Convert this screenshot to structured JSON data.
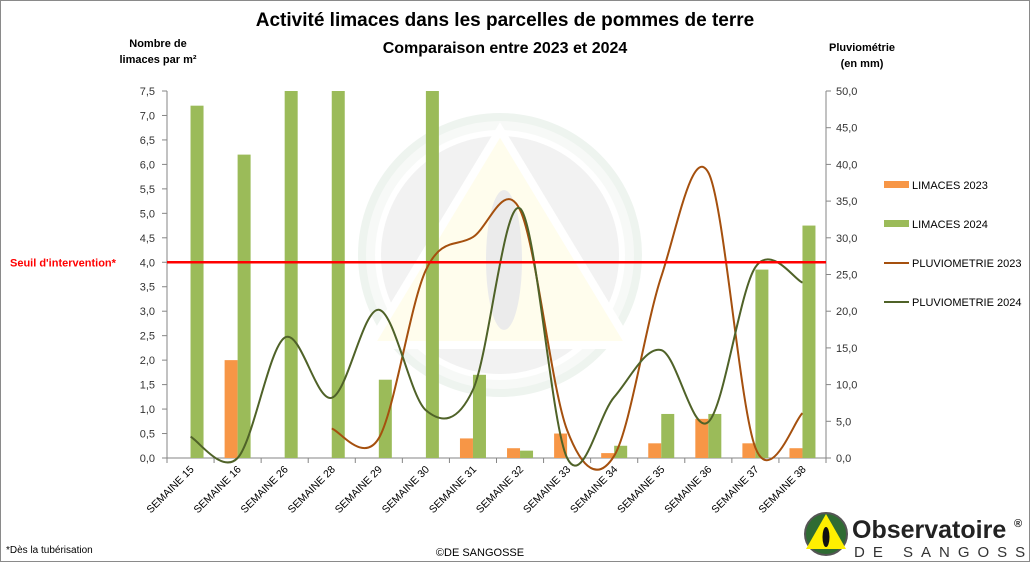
{
  "chart_data": {
    "type": "bar",
    "title": "Activité limaces dans les parcelles de pommes de terre",
    "subtitle": "Comparaison entre 2023 et 2024",
    "ylabel": [
      "Nombre de",
      "limaces par m²"
    ],
    "y2label": [
      "Pluviométrie",
      "(en mm)"
    ],
    "ylim": [
      0,
      7.5
    ],
    "y2lim": [
      0,
      50
    ],
    "yticks": [
      "0,0",
      "0,5",
      "1,0",
      "1,5",
      "2,0",
      "2,5",
      "3,0",
      "3,5",
      "4,0",
      "4,5",
      "5,0",
      "5,5",
      "6,0",
      "6,5",
      "7,0",
      "7,5"
    ],
    "y2ticks": [
      "0,0",
      "5,0",
      "10,0",
      "15,0",
      "20,0",
      "25,0",
      "30,0",
      "35,0",
      "40,0",
      "45,0",
      "50,0"
    ],
    "categories": [
      "SEMAINE 15",
      "SEMAINE 16",
      "SEMAINE 26",
      "SEMAINE 28",
      "SEMAINE 29",
      "SEMAINE 30",
      "SEMAINE 31",
      "SEMAINE 32",
      "SEMAINE 33",
      "SEMAINE 34",
      "SEMAINE 35",
      "SEMAINE 36",
      "SEMAINE 37",
      "SEMAINE 38"
    ],
    "series": [
      {
        "name": "LIMACES 2023",
        "kind": "bar",
        "axis": "left",
        "color": "#f79646",
        "values": [
          0,
          2.0,
          0,
          0,
          0,
          0,
          0.4,
          0.2,
          0.5,
          0.1,
          0.3,
          0.8,
          0.3,
          0.2
        ]
      },
      {
        "name": "LIMACES 2024",
        "kind": "bar",
        "axis": "left",
        "color": "#9bbb59",
        "values": [
          7.2,
          6.2,
          7.5,
          7.5,
          1.6,
          7.5,
          1.7,
          0.15,
          0,
          0.25,
          0.9,
          0.9,
          3.85,
          4.75
        ]
      },
      {
        "name": "PLUVIOMETRIE 2023",
        "kind": "line",
        "axis": "right",
        "color": "#a5500e",
        "values": [
          null,
          null,
          null,
          4.0,
          2.7,
          25.6,
          30.1,
          33.8,
          3.8,
          0.3,
          24.7,
          38.9,
          1.4,
          6.1
        ]
      },
      {
        "name": "PLUVIOMETRIE 2024",
        "kind": "line",
        "axis": "right",
        "color": "#4f6228",
        "values": [
          2.9,
          0,
          16.4,
          8.2,
          20.2,
          6.5,
          9.3,
          34.0,
          0,
          8.3,
          14.7,
          4.9,
          26.0,
          23.9
        ]
      }
    ],
    "threshold": {
      "value": 4.0,
      "label": "Seuil  d'intervention*",
      "color": "#ff0000"
    },
    "legend": "right",
    "grid": false
  },
  "footnote": "*Dès la tubérisation",
  "copyright": "©DE SANGOSSE",
  "logo": {
    "name": "Observatoire",
    "registered": "®",
    "sub": "DE SANGOSSE"
  }
}
